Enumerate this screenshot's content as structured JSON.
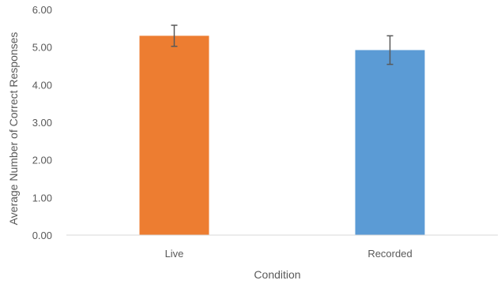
{
  "chart_data": {
    "type": "bar",
    "title": "",
    "xlabel": "Condition",
    "ylabel": "Average Number of Correct Responses",
    "categories": [
      "Live",
      "Recorded"
    ],
    "values": [
      5.3,
      4.92
    ],
    "error": [
      0.28,
      0.38
    ],
    "bar_colors": [
      "#ED7D31",
      "#5B9BD5"
    ],
    "ylim": [
      0,
      6
    ],
    "yticks": [
      "0.00",
      "1.00",
      "2.00",
      "3.00",
      "4.00",
      "5.00",
      "6.00"
    ],
    "grid": false,
    "legend": "none"
  }
}
